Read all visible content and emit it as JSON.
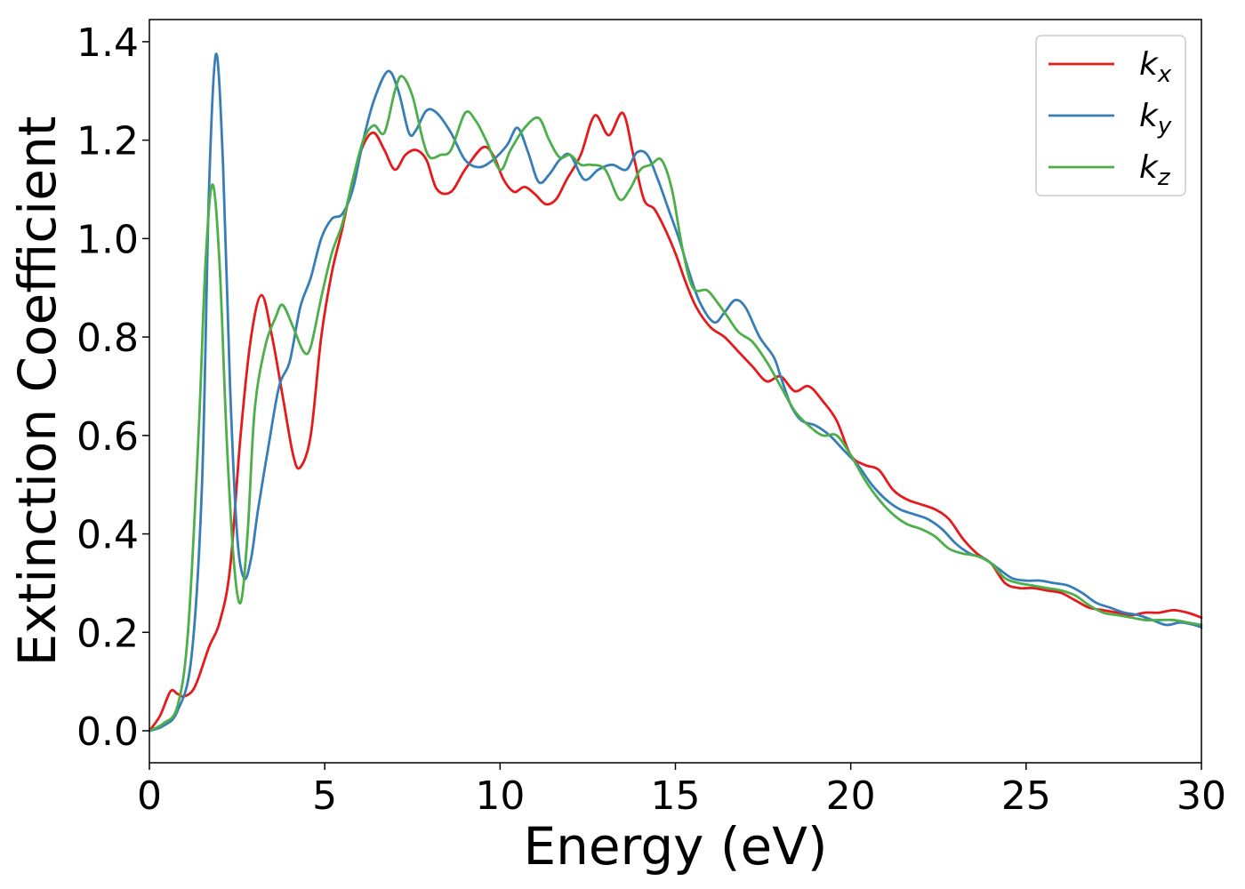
{
  "chart_data": {
    "type": "line",
    "xlabel": "Energy (eV)",
    "ylabel": "Extinction Coefficient",
    "xlim": [
      0,
      30
    ],
    "ylim": [
      -0.065,
      1.445
    ],
    "xticks": [
      0,
      5,
      10,
      15,
      20,
      25,
      30
    ],
    "yticks": [
      0.0,
      0.2,
      0.4,
      0.6,
      0.8,
      1.0,
      1.2,
      1.4
    ],
    "xtick_labels": [
      "0",
      "5",
      "10",
      "15",
      "20",
      "25",
      "30"
    ],
    "ytick_labels": [
      "0.0",
      "0.2",
      "0.4",
      "0.6",
      "0.8",
      "1.0",
      "1.2",
      "1.4"
    ],
    "grid": false,
    "legend_position": "top-right",
    "series": [
      {
        "name": "k_x",
        "legend_base": "k",
        "legend_sub": "x",
        "color": "#e41a1c",
        "points": [
          [
            0,
            0
          ],
          [
            0.3,
            0.03
          ],
          [
            0.6,
            0.08
          ],
          [
            0.8,
            0.075
          ],
          [
            1.0,
            0.07
          ],
          [
            1.3,
            0.09
          ],
          [
            1.7,
            0.17
          ],
          [
            2.0,
            0.22
          ],
          [
            2.3,
            0.33
          ],
          [
            2.6,
            0.6
          ],
          [
            2.9,
            0.8
          ],
          [
            3.2,
            0.885
          ],
          [
            3.5,
            0.8
          ],
          [
            3.8,
            0.68
          ],
          [
            4.1,
            0.56
          ],
          [
            4.3,
            0.535
          ],
          [
            4.6,
            0.6
          ],
          [
            4.9,
            0.8
          ],
          [
            5.2,
            0.93
          ],
          [
            5.5,
            1.02
          ],
          [
            5.8,
            1.12
          ],
          [
            6.1,
            1.19
          ],
          [
            6.4,
            1.215
          ],
          [
            6.7,
            1.18
          ],
          [
            7.0,
            1.14
          ],
          [
            7.3,
            1.17
          ],
          [
            7.6,
            1.18
          ],
          [
            7.9,
            1.16
          ],
          [
            8.2,
            1.1
          ],
          [
            8.6,
            1.095
          ],
          [
            9.0,
            1.14
          ],
          [
            9.5,
            1.185
          ],
          [
            9.8,
            1.17
          ],
          [
            10.1,
            1.12
          ],
          [
            10.4,
            1.095
          ],
          [
            10.7,
            1.105
          ],
          [
            11.0,
            1.09
          ],
          [
            11.3,
            1.07
          ],
          [
            11.6,
            1.08
          ],
          [
            11.9,
            1.12
          ],
          [
            12.3,
            1.17
          ],
          [
            12.7,
            1.25
          ],
          [
            13.1,
            1.21
          ],
          [
            13.5,
            1.255
          ],
          [
            13.8,
            1.17
          ],
          [
            14.1,
            1.08
          ],
          [
            14.4,
            1.06
          ],
          [
            14.7,
            1.02
          ],
          [
            15.0,
            0.97
          ],
          [
            15.3,
            0.91
          ],
          [
            15.6,
            0.86
          ],
          [
            16.0,
            0.82
          ],
          [
            16.4,
            0.8
          ],
          [
            16.8,
            0.77
          ],
          [
            17.2,
            0.74
          ],
          [
            17.6,
            0.71
          ],
          [
            18.0,
            0.72
          ],
          [
            18.4,
            0.69
          ],
          [
            18.8,
            0.7
          ],
          [
            19.2,
            0.67
          ],
          [
            19.6,
            0.63
          ],
          [
            20.0,
            0.56
          ],
          [
            20.4,
            0.54
          ],
          [
            20.8,
            0.53
          ],
          [
            21.2,
            0.49
          ],
          [
            21.6,
            0.47
          ],
          [
            22.0,
            0.46
          ],
          [
            22.4,
            0.45
          ],
          [
            22.8,
            0.43
          ],
          [
            23.2,
            0.39
          ],
          [
            23.6,
            0.36
          ],
          [
            24.0,
            0.34
          ],
          [
            24.4,
            0.3
          ],
          [
            24.8,
            0.29
          ],
          [
            25.2,
            0.29
          ],
          [
            25.6,
            0.285
          ],
          [
            26.0,
            0.28
          ],
          [
            26.4,
            0.265
          ],
          [
            26.8,
            0.25
          ],
          [
            27.2,
            0.245
          ],
          [
            27.6,
            0.24
          ],
          [
            28.0,
            0.235
          ],
          [
            28.4,
            0.24
          ],
          [
            28.8,
            0.24
          ],
          [
            29.2,
            0.245
          ],
          [
            29.6,
            0.24
          ],
          [
            30.0,
            0.23
          ]
        ]
      },
      {
        "name": "k_y",
        "legend_base": "k",
        "legend_sub": "y",
        "color": "#377eb8",
        "points": [
          [
            0,
            0
          ],
          [
            0.4,
            0.01
          ],
          [
            0.8,
            0.04
          ],
          [
            1.2,
            0.15
          ],
          [
            1.5,
            0.5
          ],
          [
            1.7,
            1.1
          ],
          [
            1.9,
            1.375
          ],
          [
            2.1,
            1.15
          ],
          [
            2.3,
            0.7
          ],
          [
            2.5,
            0.4
          ],
          [
            2.7,
            0.31
          ],
          [
            2.9,
            0.35
          ],
          [
            3.1,
            0.45
          ],
          [
            3.4,
            0.58
          ],
          [
            3.7,
            0.7
          ],
          [
            4.0,
            0.75
          ],
          [
            4.3,
            0.86
          ],
          [
            4.6,
            0.92
          ],
          [
            4.9,
            1.0
          ],
          [
            5.2,
            1.04
          ],
          [
            5.5,
            1.05
          ],
          [
            5.8,
            1.1
          ],
          [
            6.1,
            1.2
          ],
          [
            6.4,
            1.28
          ],
          [
            6.8,
            1.34
          ],
          [
            7.1,
            1.3
          ],
          [
            7.4,
            1.215
          ],
          [
            7.6,
            1.22
          ],
          [
            7.9,
            1.26
          ],
          [
            8.2,
            1.255
          ],
          [
            8.6,
            1.215
          ],
          [
            9.0,
            1.16
          ],
          [
            9.4,
            1.145
          ],
          [
            9.8,
            1.16
          ],
          [
            10.2,
            1.19
          ],
          [
            10.5,
            1.225
          ],
          [
            10.8,
            1.175
          ],
          [
            11.1,
            1.115
          ],
          [
            11.4,
            1.13
          ],
          [
            11.7,
            1.16
          ],
          [
            12.0,
            1.17
          ],
          [
            12.4,
            1.12
          ],
          [
            12.8,
            1.14
          ],
          [
            13.2,
            1.15
          ],
          [
            13.6,
            1.14
          ],
          [
            13.9,
            1.175
          ],
          [
            14.2,
            1.17
          ],
          [
            14.5,
            1.12
          ],
          [
            14.8,
            1.06
          ],
          [
            15.1,
            1.0
          ],
          [
            15.4,
            0.93
          ],
          [
            15.7,
            0.87
          ],
          [
            16.1,
            0.83
          ],
          [
            16.4,
            0.85
          ],
          [
            16.7,
            0.875
          ],
          [
            17.0,
            0.86
          ],
          [
            17.4,
            0.8
          ],
          [
            17.8,
            0.76
          ],
          [
            18.0,
            0.72
          ],
          [
            18.3,
            0.66
          ],
          [
            18.6,
            0.63
          ],
          [
            19.0,
            0.62
          ],
          [
            19.4,
            0.6
          ],
          [
            19.8,
            0.57
          ],
          [
            20.2,
            0.54
          ],
          [
            20.6,
            0.5
          ],
          [
            21.0,
            0.47
          ],
          [
            21.4,
            0.45
          ],
          [
            21.8,
            0.44
          ],
          [
            22.2,
            0.43
          ],
          [
            22.6,
            0.41
          ],
          [
            23.0,
            0.38
          ],
          [
            23.4,
            0.36
          ],
          [
            23.8,
            0.35
          ],
          [
            24.2,
            0.33
          ],
          [
            24.6,
            0.31
          ],
          [
            25.0,
            0.305
          ],
          [
            25.4,
            0.305
          ],
          [
            25.8,
            0.3
          ],
          [
            26.2,
            0.295
          ],
          [
            26.6,
            0.28
          ],
          [
            27.0,
            0.26
          ],
          [
            27.4,
            0.25
          ],
          [
            27.8,
            0.24
          ],
          [
            28.2,
            0.235
          ],
          [
            28.6,
            0.225
          ],
          [
            29.0,
            0.215
          ],
          [
            29.4,
            0.22
          ],
          [
            29.8,
            0.215
          ],
          [
            30.0,
            0.21
          ]
        ]
      },
      {
        "name": "k_z",
        "legend_base": "k",
        "legend_sub": "z",
        "color": "#4daf4a",
        "points": [
          [
            0,
            0
          ],
          [
            0.4,
            0.015
          ],
          [
            0.8,
            0.05
          ],
          [
            1.1,
            0.2
          ],
          [
            1.4,
            0.6
          ],
          [
            1.6,
            0.95
          ],
          [
            1.8,
            1.11
          ],
          [
            2.0,
            0.95
          ],
          [
            2.2,
            0.6
          ],
          [
            2.4,
            0.35
          ],
          [
            2.6,
            0.26
          ],
          [
            2.8,
            0.4
          ],
          [
            3.0,
            0.65
          ],
          [
            3.3,
            0.78
          ],
          [
            3.6,
            0.84
          ],
          [
            3.8,
            0.865
          ],
          [
            4.1,
            0.82
          ],
          [
            4.4,
            0.77
          ],
          [
            4.6,
            0.78
          ],
          [
            4.9,
            0.88
          ],
          [
            5.2,
            0.97
          ],
          [
            5.5,
            1.03
          ],
          [
            5.8,
            1.12
          ],
          [
            6.1,
            1.2
          ],
          [
            6.4,
            1.23
          ],
          [
            6.7,
            1.215
          ],
          [
            7.0,
            1.3
          ],
          [
            7.2,
            1.33
          ],
          [
            7.5,
            1.29
          ],
          [
            7.8,
            1.2
          ],
          [
            8.0,
            1.165
          ],
          [
            8.3,
            1.17
          ],
          [
            8.6,
            1.18
          ],
          [
            9.0,
            1.255
          ],
          [
            9.3,
            1.24
          ],
          [
            9.6,
            1.2
          ],
          [
            10.0,
            1.14
          ],
          [
            10.3,
            1.18
          ],
          [
            10.7,
            1.225
          ],
          [
            11.1,
            1.245
          ],
          [
            11.4,
            1.2
          ],
          [
            11.7,
            1.165
          ],
          [
            12.0,
            1.17
          ],
          [
            12.3,
            1.15
          ],
          [
            12.6,
            1.15
          ],
          [
            13.0,
            1.14
          ],
          [
            13.4,
            1.08
          ],
          [
            13.7,
            1.1
          ],
          [
            14.0,
            1.14
          ],
          [
            14.3,
            1.15
          ],
          [
            14.6,
            1.16
          ],
          [
            14.9,
            1.1
          ],
          [
            15.2,
            0.98
          ],
          [
            15.5,
            0.9
          ],
          [
            15.9,
            0.895
          ],
          [
            16.2,
            0.87
          ],
          [
            16.5,
            0.84
          ],
          [
            16.8,
            0.81
          ],
          [
            17.2,
            0.79
          ],
          [
            17.6,
            0.75
          ],
          [
            18.0,
            0.7
          ],
          [
            18.4,
            0.65
          ],
          [
            18.8,
            0.62
          ],
          [
            19.2,
            0.6
          ],
          [
            19.6,
            0.6
          ],
          [
            20.0,
            0.56
          ],
          [
            20.4,
            0.51
          ],
          [
            20.8,
            0.47
          ],
          [
            21.2,
            0.44
          ],
          [
            21.6,
            0.42
          ],
          [
            22.0,
            0.41
          ],
          [
            22.4,
            0.395
          ],
          [
            22.8,
            0.37
          ],
          [
            23.2,
            0.36
          ],
          [
            23.6,
            0.355
          ],
          [
            24.0,
            0.34
          ],
          [
            24.4,
            0.31
          ],
          [
            24.8,
            0.3
          ],
          [
            25.2,
            0.295
          ],
          [
            25.6,
            0.29
          ],
          [
            26.0,
            0.285
          ],
          [
            26.4,
            0.275
          ],
          [
            26.8,
            0.255
          ],
          [
            27.2,
            0.24
          ],
          [
            27.6,
            0.235
          ],
          [
            28.0,
            0.23
          ],
          [
            28.4,
            0.225
          ],
          [
            28.8,
            0.225
          ],
          [
            29.2,
            0.225
          ],
          [
            29.6,
            0.22
          ],
          [
            30.0,
            0.215
          ]
        ]
      }
    ]
  }
}
